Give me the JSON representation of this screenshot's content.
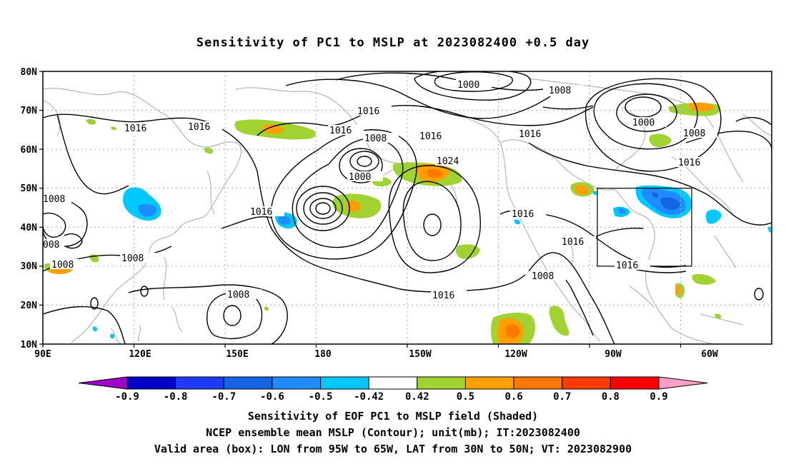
{
  "title": "Sensitivity of PC1 to MSLP at 2023082400 +0.5 day",
  "map": {
    "lat_labels": [
      "80N",
      "70N",
      "60N",
      "50N",
      "40N",
      "30N",
      "20N",
      "10N"
    ],
    "lon_labels": [
      "90E",
      "120E",
      "150E",
      "180",
      "150W",
      "120W",
      "90W",
      "60W"
    ],
    "contour_labels": {
      "c1000_a": "1000",
      "c1000_b": "1000",
      "c1000_c": "1000",
      "c1008_a": "1008",
      "c1008_b": "1008",
      "c1008_c": "1008",
      "c1008_d": "1008",
      "c1008_e": "008",
      "c1008_f": "1008",
      "c1008_g": "1008",
      "c1008_h": "1008",
      "c1008_i": "1008",
      "c1016_a": "1016",
      "c1016_b": "1016",
      "c1016_c": "1016",
      "c1016_d": "1016",
      "c1016_e": "1016",
      "c1016_f": "1016",
      "c1016_g": "1016",
      "c1016_h": "1016",
      "c1016_i": "1016",
      "c1016_j": "1016",
      "c1016_k": "1016",
      "c1016_l": "1016",
      "c1024": "1024"
    },
    "colors": {
      "land": "#b4b4b4",
      "contour": "#000000",
      "grid": "#aaaaaa"
    }
  },
  "colorbar": {
    "labels": [
      "-0.9",
      "-0.8",
      "-0.7",
      "-0.6",
      "-0.5",
      "-0.42",
      "0.42",
      "0.5",
      "0.6",
      "0.7",
      "0.8",
      "0.9"
    ],
    "colors": [
      "#a000c8",
      "#0000c8",
      "#1e3cff",
      "#1464e6",
      "#1e8cff",
      "#00c8ff",
      "#ffffff",
      "#a0d232",
      "#ffa000",
      "#ff7800",
      "#ff3c00",
      "#ff0000",
      "#ffa0c8"
    ]
  },
  "captions": {
    "line1": "Sensitivity of EOF PC1 to MSLP field (Shaded)",
    "line2": "NCEP ensemble mean MSLP (Contour); unit(mb); IT:2023082400",
    "line3": "Valid area (box): LON from 95W to 65W, LAT from 30N to 50N; VT: 2023082900"
  }
}
